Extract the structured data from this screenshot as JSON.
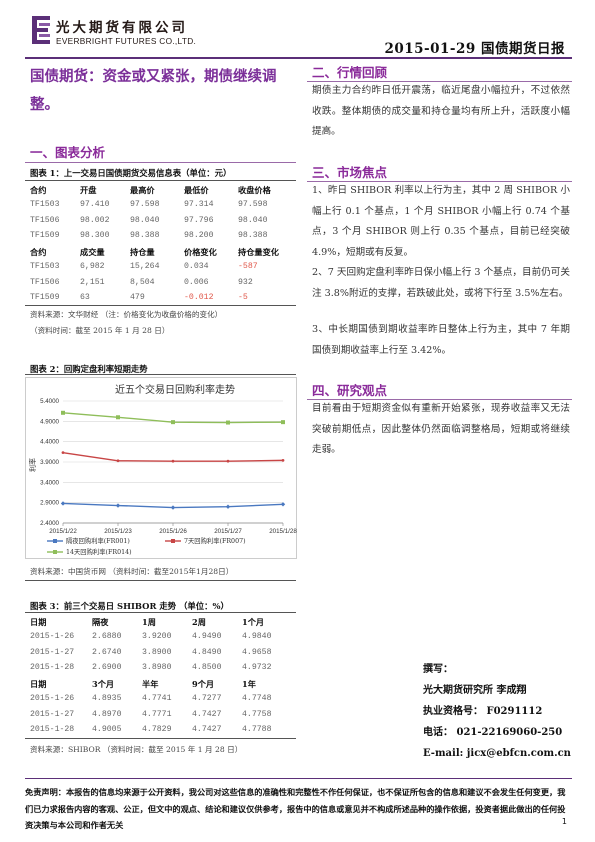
{
  "header": {
    "company_cn": "光大期货有限公司",
    "company_en": "EVERBRIGHT FUTURES CO.,LTD.",
    "date_title": "2015-01-29  国债期货日报"
  },
  "main_title": "国债期货：资金或又紧张，期债继续调整。",
  "sections": {
    "s1": "一、图表分析",
    "s2": "二、行情回顾",
    "s3": "三、市场焦点",
    "s4": "四、研究观点"
  },
  "table1": {
    "title": "图表 1：上一交易日国债期货交易信息表（单位：元）",
    "header1": [
      "合约",
      "开盘",
      "最高价",
      "最低价",
      "收盘价格"
    ],
    "rows1": [
      [
        "TF1503",
        "97.410",
        "97.598",
        "97.314",
        "97.598"
      ],
      [
        "TF1506",
        "98.002",
        "98.040",
        "97.796",
        "98.040"
      ],
      [
        "TF1509",
        "98.300",
        "98.388",
        "98.200",
        "98.388"
      ]
    ],
    "header2": [
      "合约",
      "成交量",
      "持仓量",
      "价格变化",
      "持仓量变化"
    ],
    "rows2": [
      [
        "TF1503",
        "6,982",
        "15,264",
        "0.034",
        "-587"
      ],
      [
        "TF1506",
        "2,151",
        "8,504",
        "0.006",
        "932"
      ],
      [
        "TF1509",
        "63",
        "479",
        "-0.012",
        "-5"
      ]
    ],
    "source1": "资料来源：文华财经 （注：价格变化为收盘价格的变化）",
    "source2": "（资料时间：截至 2015 年 1 月 28 日）"
  },
  "figure2": {
    "title": "图表 2：回购定盘利率短期走势",
    "source": "资料来源：中国货币网 （资料时间：截至2015年1月28日）"
  },
  "chart_data": {
    "type": "line",
    "title": "近五个交易日回购利率走势",
    "ylabel": "利率",
    "ylim": [
      2.4,
      5.4
    ],
    "yticks": [
      "5.4000",
      "4.9000",
      "4.4000",
      "3.9000",
      "3.4000",
      "2.9000",
      "2.4000"
    ],
    "x": [
      "2015/1/22",
      "2015/1/23",
      "2015/1/26",
      "2015/1/27",
      "2015/1/28"
    ],
    "series": [
      {
        "name": "隔夜回购利率(FR001)",
        "color": "#4a78c0",
        "values": [
          2.88,
          2.83,
          2.78,
          2.8,
          2.86
        ]
      },
      {
        "name": "7天回购利率(FR007)",
        "color": "#c84545",
        "values": [
          4.13,
          3.93,
          3.92,
          3.92,
          3.94
        ]
      },
      {
        "name": "14天回购利率(FR014)",
        "color": "#8fbe5a",
        "values": [
          5.11,
          5.0,
          4.88,
          4.87,
          4.88
        ]
      }
    ]
  },
  "table3": {
    "title": "图表 3：前三个交易日 SHIBOR 走势 （单位：%）",
    "header1": [
      "日期",
      "隔夜",
      "1周",
      "2周",
      "1个月"
    ],
    "rows1": [
      [
        "2015-1-26",
        "2.6880",
        "3.9200",
        "4.9490",
        "4.9840"
      ],
      [
        "2015-1-27",
        "2.6740",
        "3.8900",
        "4.8490",
        "4.9658"
      ],
      [
        "2015-1-28",
        "2.6900",
        "3.8980",
        "4.8500",
        "4.9732"
      ]
    ],
    "header2": [
      "日期",
      "3个月",
      "半年",
      "9个月",
      "1年"
    ],
    "rows2": [
      [
        "2015-1-26",
        "4.8935",
        "4.7741",
        "4.7277",
        "4.7748"
      ],
      [
        "2015-1-27",
        "4.8970",
        "4.7771",
        "4.7427",
        "4.7758"
      ],
      [
        "2015-1-28",
        "4.9005",
        "4.7829",
        "4.7427",
        "4.7788"
      ]
    ],
    "source": "资料来源：SHIBOR （资料时间：截至 2015 年 1 月 28 日）"
  },
  "review": "期债主力合约昨日低开震荡，临近尾盘小幅拉升，不过依然收跌。整体期债的成交量和持仓量均有所上升，活跃度小幅提高。",
  "focus": [
    "1、昨日 SHIBOR 利率以上行为主，其中 2 周 SHIBOR 小幅上行 0.1 个基点，1 个月 SHIBOR 小幅上行 0.74 个基点，3 个月 SHIBOR 则上行 0.35 个基点，目前已经突破 4.9%，短期或有反复。",
    "2、7 天回购定盘利率昨日保小幅上行 3 个基点，目前仍可关注 3.8%附近的支撑，若跌破此处，或将下行至 3.5%左右。",
    "3、中长期国债到期收益率昨日整体上行为主，其中 7 年期国债到期收益率上行至 3.42%。"
  ],
  "opinion": "目前看由于短期资金似有重新开始紧张，现券收益率又无法突破前期低点，因此整体仍然面临调整格局，短期或将继续走弱。",
  "author": {
    "l1": "撰写：",
    "l2": "光大期货研究所  李成翔",
    "l3": "执业资格号：  F0291112",
    "l4": "电话：  021-22169060-250",
    "l5": "E-mail: jicx@ebfcn.com.cn"
  },
  "disclaimer": "免责声明：本报告的信息均来源于公开资料，我公司对这些信息的准确性和完整性不作任何保证，也不保证所包含的信息和建议不会发生任何变更，我们已力求报告内容的客观、公正，但文中的观点、结论和建议仅供参考，报告中的信息或意见并不构成所述品种的操作依据，投资者据此做出的任何投资决策与本公司和作者无关",
  "page_number": "1"
}
